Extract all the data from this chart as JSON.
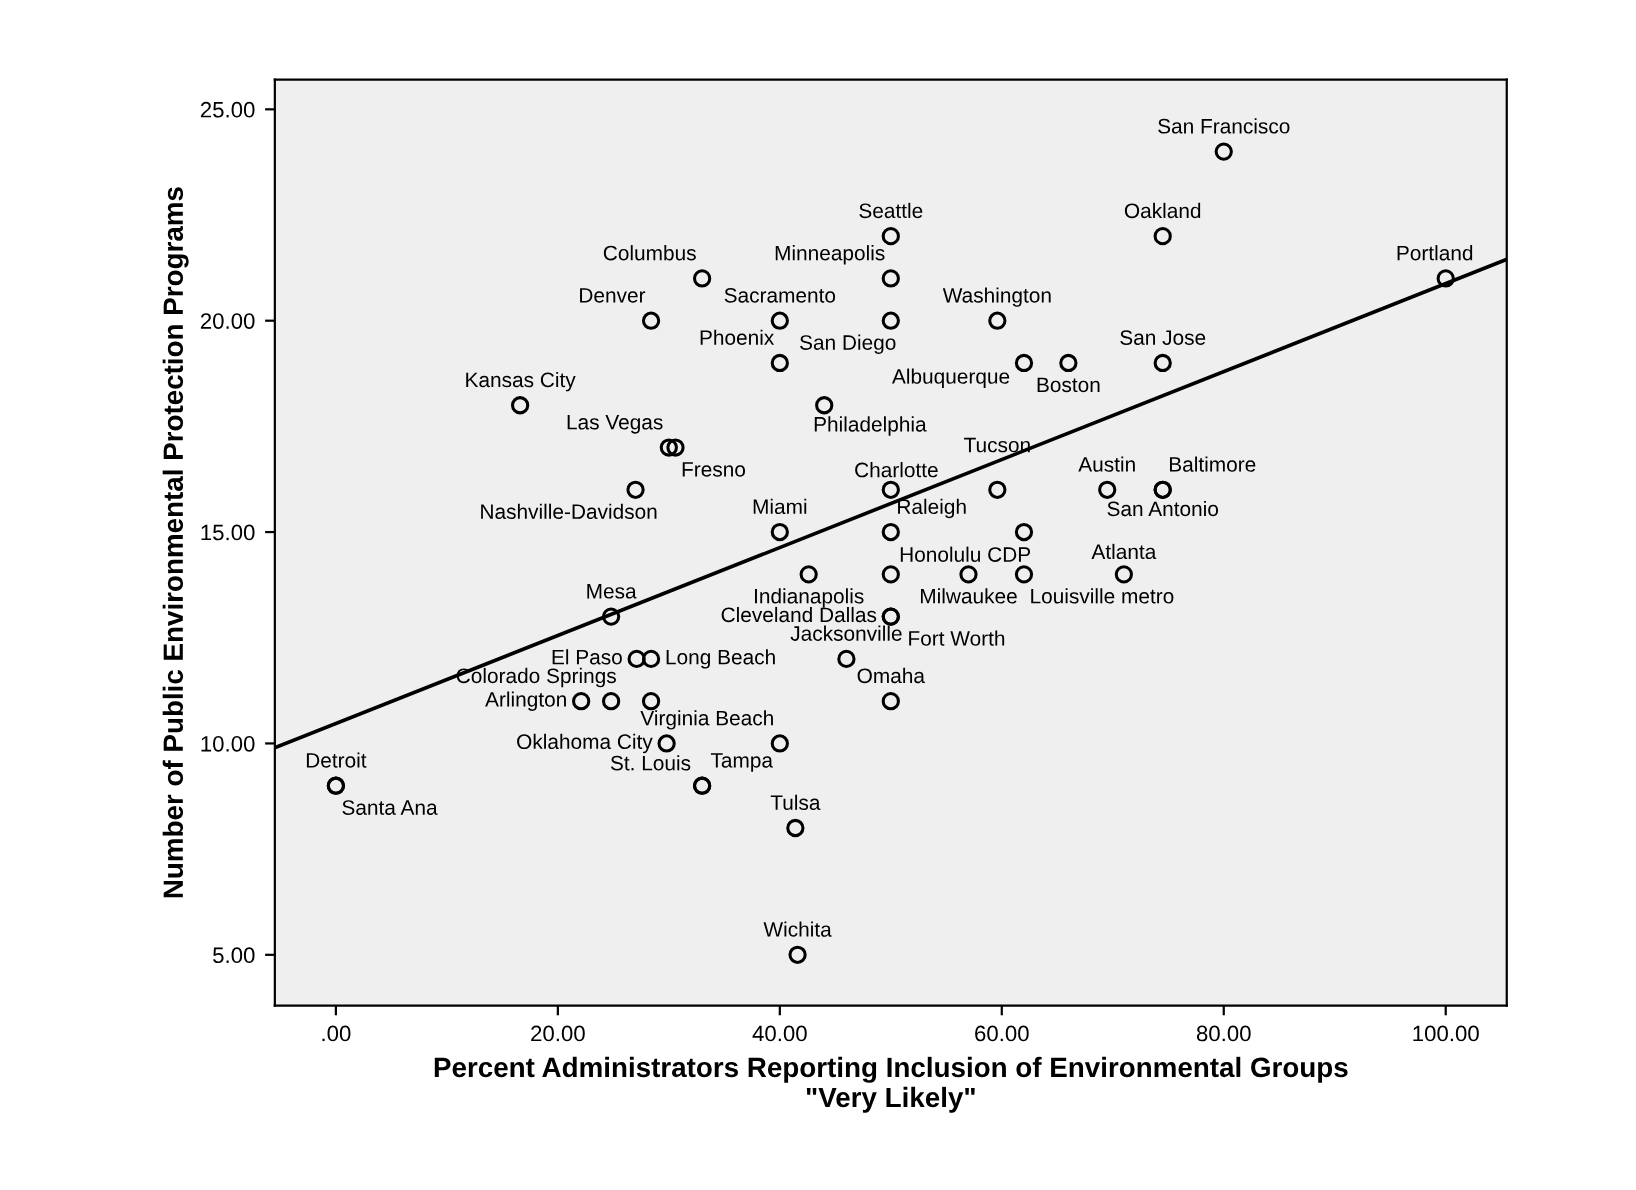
{
  "chart_data": {
    "type": "scatter",
    "xlabel": "Percent Administrators Reporting Inclusion of Environmental Groups\n\"Very Likely\"",
    "ylabel": "Number of Public Environmental Protection Programs",
    "xlim": [
      -5.5,
      105.5
    ],
    "ylim": [
      3.8,
      25.7
    ],
    "xticks": [
      {
        "value": 0,
        "label": ".00"
      },
      {
        "value": 20,
        "label": "20.00"
      },
      {
        "value": 40,
        "label": "40.00"
      },
      {
        "value": 60,
        "label": "60.00"
      },
      {
        "value": 80,
        "label": "80.00"
      },
      {
        "value": 100,
        "label": "100.00"
      }
    ],
    "yticks": [
      {
        "value": 5,
        "label": "5.00"
      },
      {
        "value": 10,
        "label": "10.00"
      },
      {
        "value": 15,
        "label": "15.00"
      },
      {
        "value": 20,
        "label": "20.00"
      },
      {
        "value": 25,
        "label": "25.00"
      }
    ],
    "grid": false,
    "legend": false,
    "marker": "circle",
    "series": [
      {
        "type": "scatter",
        "color": "#000000",
        "x": [
          80,
          74.5,
          100,
          50,
          50,
          33,
          28.4,
          40,
          50,
          40,
          59.6,
          62,
          66,
          74.5,
          16.6,
          44,
          30,
          30.6,
          27,
          50,
          59.6,
          69.5,
          74.5,
          74.5,
          40,
          50,
          42.6,
          50,
          62,
          57,
          62,
          71,
          50,
          50,
          24.8,
          27.1,
          28.4,
          46,
          24.8,
          22.1,
          28.4,
          50,
          29.8,
          40,
          33,
          33,
          0,
          0,
          41.4,
          41.6
        ],
        "values": [
          24,
          22,
          21,
          22,
          21,
          21,
          20,
          20,
          20,
          19,
          20,
          19,
          19,
          19,
          18,
          18,
          17,
          17,
          16,
          16,
          16,
          16,
          16,
          16,
          15,
          15,
          14,
          14,
          15,
          14,
          14,
          14,
          13,
          13,
          13,
          12,
          12,
          12,
          11,
          11,
          11,
          11,
          10,
          10,
          9,
          9,
          9,
          9,
          8,
          5
        ],
        "value_labels": [
          "San Francisco",
          "Oakland",
          "Portland",
          "Seattle",
          "Minneapolis",
          "Columbus",
          "Denver",
          "Sacramento",
          "San Diego",
          "Phoenix",
          "Washington",
          "Albuquerque",
          "Boston",
          "San Jose",
          "Kansas City",
          "Philadelphia",
          "Las Vegas",
          "Fresno",
          "Nashville-Davidson",
          "Charlotte",
          "Tucson",
          "Austin",
          "Baltimore",
          "San Antonio",
          "Miami",
          "Raleigh",
          "Indianapolis",
          "Honolulu CDP",
          null,
          "Milwaukee",
          "Louisville metro",
          "Atlanta",
          "Cleveland Dallas",
          "Fort Worth",
          "Mesa",
          "El Paso",
          "Long Beach",
          "Jacksonville",
          "Colorado Springs",
          "Arlington",
          null,
          "Omaha",
          "Oklahoma City",
          "Virginia Beach",
          "Tampa",
          "St. Louis",
          "Detroit",
          "Santa Ana",
          "Tulsa",
          "Wichita"
        ]
      },
      {
        "type": "line",
        "marker": "none",
        "color": "#000000",
        "x": [
          -5.5,
          105.5
        ],
        "values": [
          9.9,
          21.45
        ]
      }
    ]
  }
}
